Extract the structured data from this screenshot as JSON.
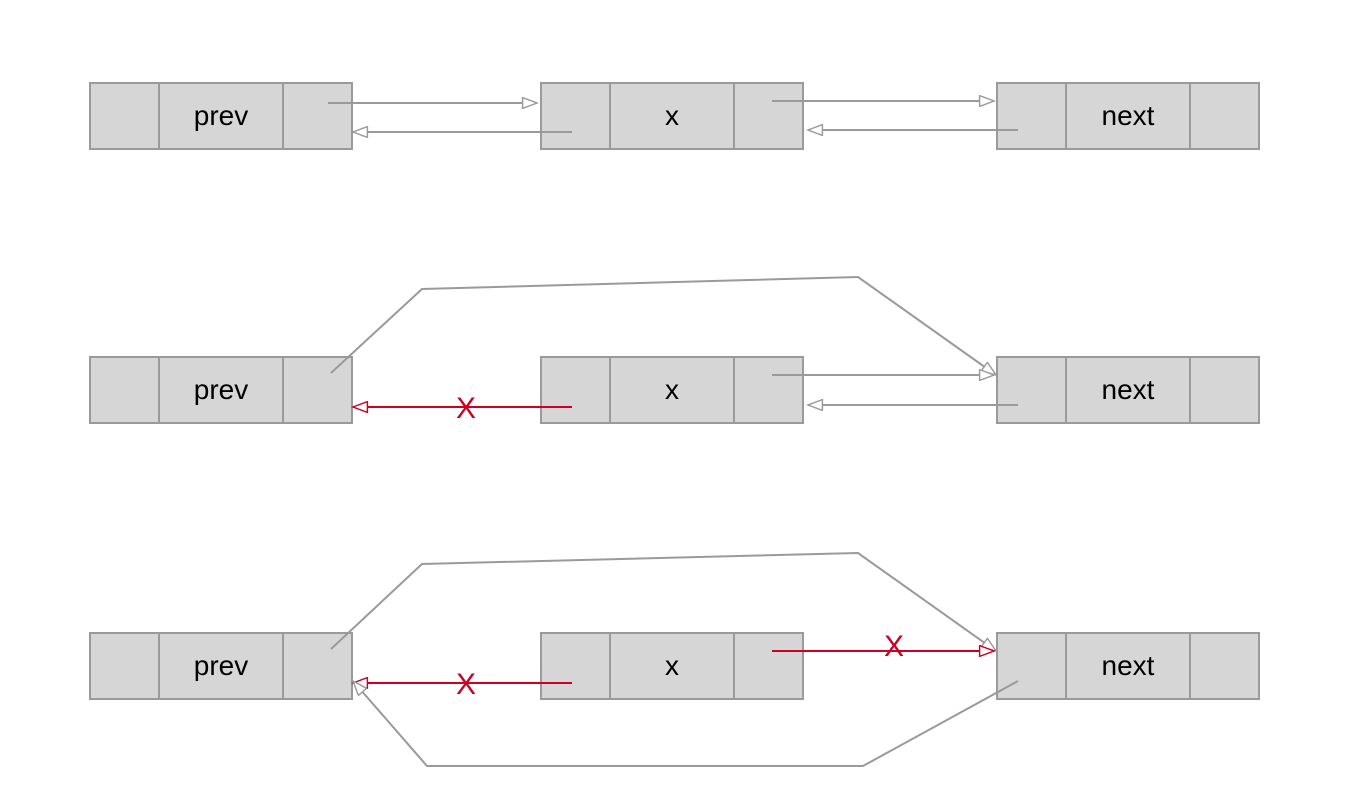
{
  "colors": {
    "node_fill": "#d6d6d6",
    "node_border": "#9a9a9a",
    "link": "#9a9a9a",
    "removed_link": "#cc0022"
  },
  "rows": [
    {
      "nodes": [
        "prev",
        "x",
        "next"
      ]
    },
    {
      "nodes": [
        "prev",
        "x",
        "next"
      ],
      "removed_mark": "X"
    },
    {
      "nodes": [
        "prev",
        "x",
        "next"
      ],
      "removed_mark": "X",
      "removed_mark_2": "X"
    }
  ]
}
